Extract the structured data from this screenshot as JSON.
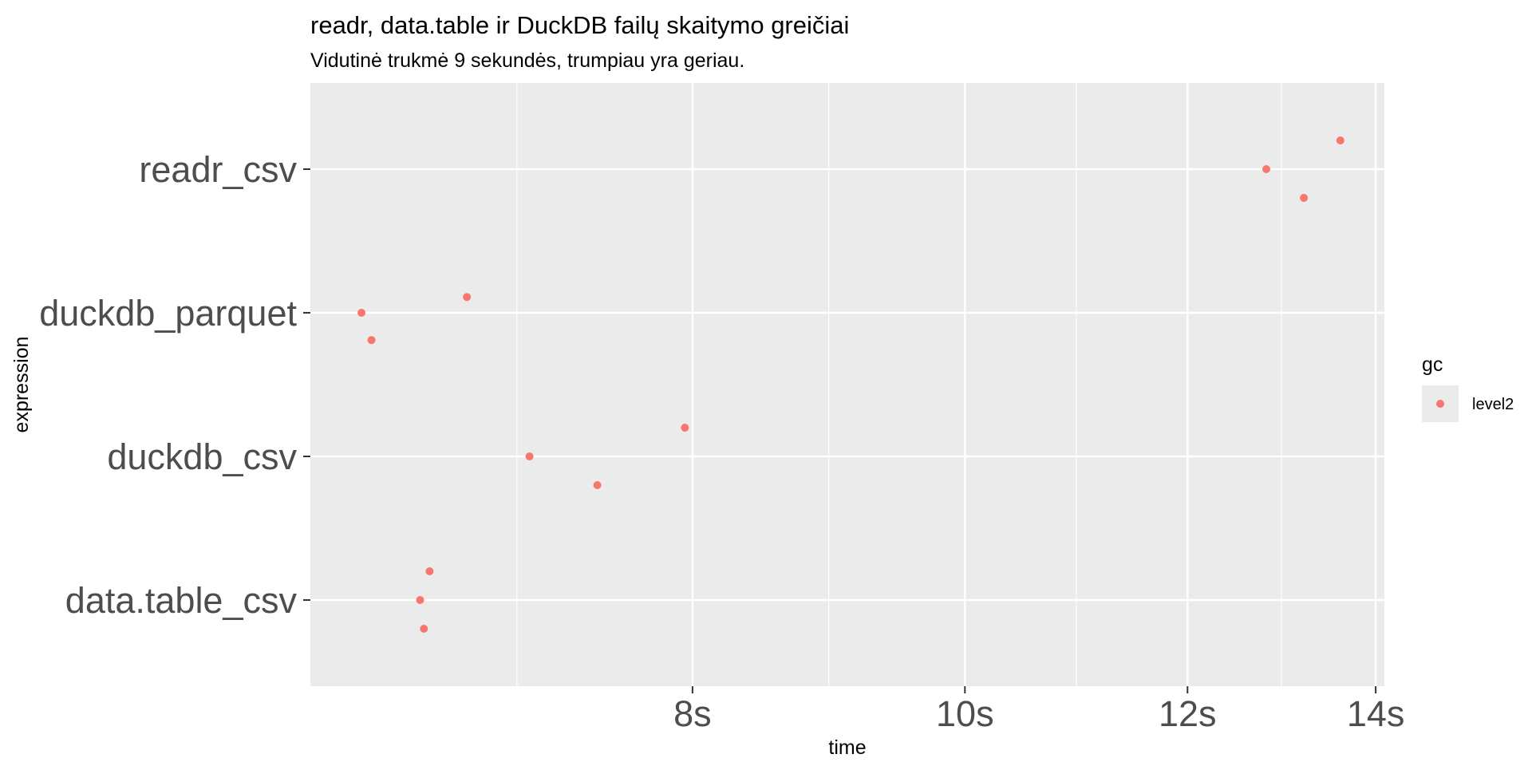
{
  "chart_data": {
    "type": "scatter",
    "title": "readr, data.table ir DuckDB failų skaitymo greičiai",
    "subtitle": "Vidutinė trukmė 9 sekundės, trumpiau yra geriau.",
    "xlabel": "time",
    "ylabel": "expression",
    "x_scale": "log",
    "x_unit": "s",
    "xlim": [
      5.85,
      14.1
    ],
    "x_ticks": [
      8,
      10,
      12,
      14
    ],
    "x_tick_labels": [
      "8s",
      "10s",
      "12s",
      "14s"
    ],
    "categories": [
      "data.table_csv",
      "duckdb_csv",
      "duckdb_parquet",
      "readr_csv"
    ],
    "grid": true,
    "legend": {
      "title": "gc",
      "position": "right",
      "entries": [
        "level2"
      ]
    },
    "series": [
      {
        "name": "level2",
        "color": "#F8766D",
        "points": [
          {
            "category": "readr_csv",
            "x": 12.8,
            "jitter": 0.0
          },
          {
            "category": "readr_csv",
            "x": 13.2,
            "jitter": -0.2
          },
          {
            "category": "readr_csv",
            "x": 13.6,
            "jitter": 0.2
          },
          {
            "category": "duckdb_parquet",
            "x": 6.1,
            "jitter": 0.0
          },
          {
            "category": "duckdb_parquet",
            "x": 6.15,
            "jitter": -0.19
          },
          {
            "category": "duckdb_parquet",
            "x": 6.65,
            "jitter": 0.11
          },
          {
            "category": "duckdb_csv",
            "x": 7.0,
            "jitter": 0.0
          },
          {
            "category": "duckdb_csv",
            "x": 7.4,
            "jitter": -0.2
          },
          {
            "category": "duckdb_csv",
            "x": 7.95,
            "jitter": 0.2
          },
          {
            "category": "data.table_csv",
            "x": 6.4,
            "jitter": 0.0
          },
          {
            "category": "data.table_csv",
            "x": 6.42,
            "jitter": -0.2
          },
          {
            "category": "data.table_csv",
            "x": 6.45,
            "jitter": 0.2
          }
        ]
      }
    ]
  }
}
